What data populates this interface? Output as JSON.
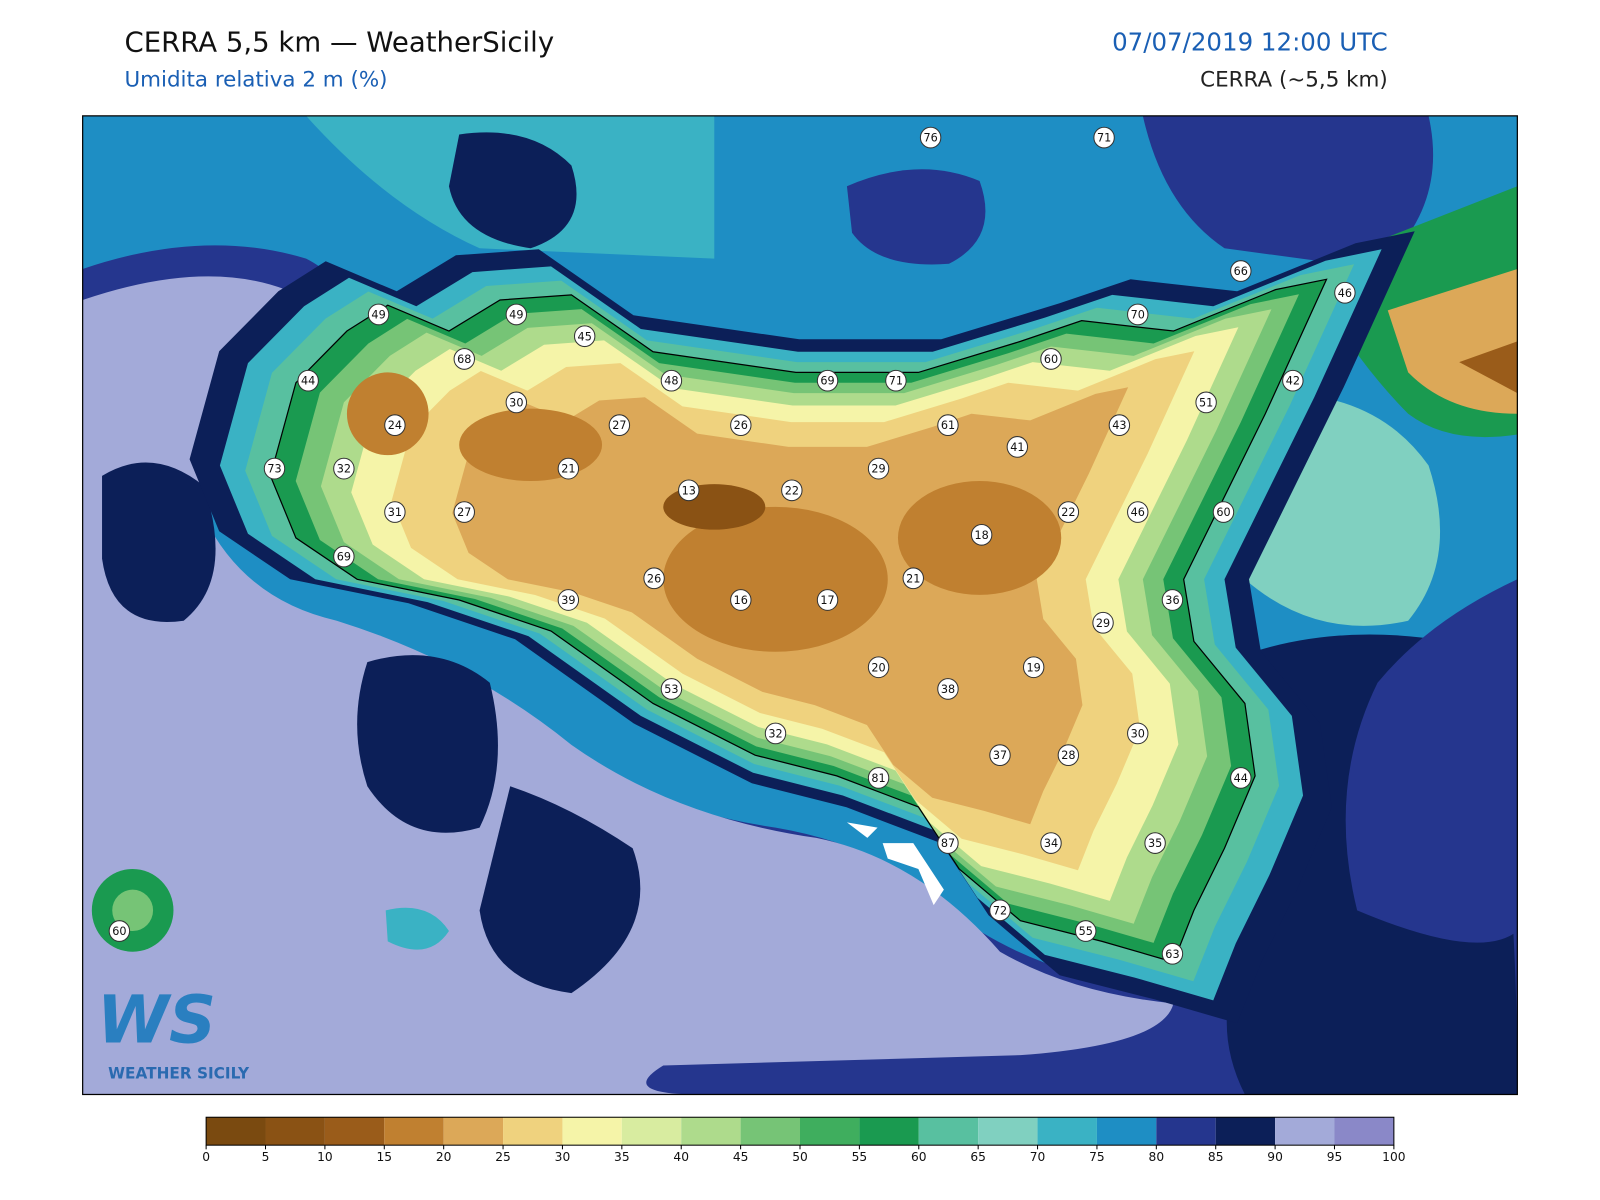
{
  "header": {
    "title": "CERRA 5,5 km — WeatherSicily",
    "subtitle": "Umidita relativa 2 m (%)",
    "date": "07/07/2019 12:00 UTC",
    "source": "CERRA (~5,5 km)"
  },
  "stations": [
    76,
    71,
    66,
    46,
    49,
    49,
    45,
    70,
    68,
    60,
    44,
    48,
    69,
    71,
    42,
    30,
    51,
    24,
    27,
    26,
    61,
    43,
    41,
    73,
    32,
    21,
    22,
    29,
    13,
    31,
    27,
    22,
    46,
    60,
    18,
    69,
    26,
    21,
    39,
    16,
    17,
    36,
    29,
    20,
    19,
    38,
    53,
    30,
    32,
    37,
    28,
    81,
    44,
    87,
    34,
    35,
    72,
    55,
    63,
    60
  ],
  "colorbar": {
    "ticks": [
      0,
      5,
      10,
      15,
      20,
      25,
      30,
      35,
      40,
      45,
      50,
      55,
      60,
      65,
      70,
      75,
      80,
      85,
      90,
      95,
      100
    ],
    "colors": [
      "#7a4a10",
      "#8a5214",
      "#9a5c1a",
      "#c08030",
      "#dca858",
      "#efd27e",
      "#f5f4a8",
      "#d8eca0",
      "#aedb8c",
      "#76c476",
      "#3fae5e",
      "#1a9a50",
      "#58c0a0",
      "#80d0c0",
      "#3ab2c4",
      "#1e8ec4",
      "#25368e",
      "#0c1f58",
      "#a3aad9",
      "#8a88c8"
    ]
  },
  "logo": {
    "mark": "WS",
    "name": "WEATHER SICILY"
  }
}
